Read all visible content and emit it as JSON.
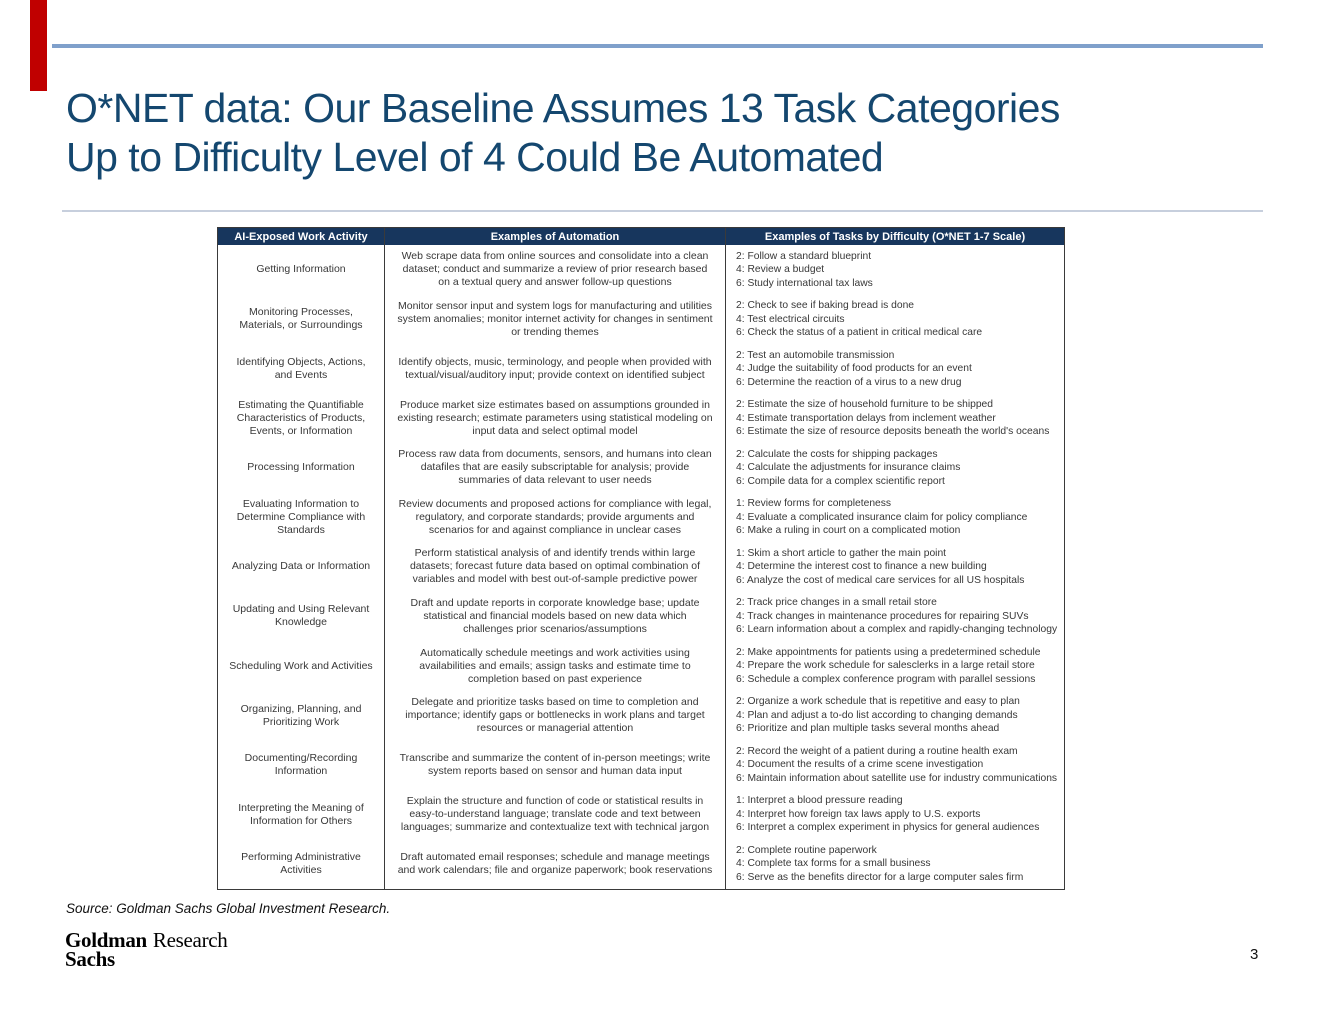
{
  "slide": {
    "title_line1": "O*NET data: Our Baseline Assumes 13 Task Categories",
    "title_line2": "Up to Difficulty Level of 4 Could Be Automated",
    "source": "Source: Goldman Sachs Global Investment Research.",
    "logo": {
      "line1": "Goldman",
      "line2": "Sachs",
      "division": "Research"
    },
    "page_number": "3"
  },
  "colors": {
    "title_blue": "#14476f",
    "header_navy": "#17365d",
    "top_rule_blue": "#7fa0cb",
    "divider_gray": "#c7cfdd",
    "red_accent": "#c00000"
  },
  "table": {
    "headers": [
      "AI-Exposed Work Activity",
      "Examples of Automation",
      "Examples of Tasks by Difficulty (O*NET 1-7 Scale)"
    ],
    "rows": [
      {
        "activity": "Getting Information",
        "automation": "Web scrape data from online sources and consolidate into a clean dataset; conduct and summarize a review of prior research based on a textual query and answer follow-up questions",
        "tasks": [
          "2: Follow a standard blueprint",
          "4: Review a budget",
          "6: Study international tax laws"
        ]
      },
      {
        "activity": "Monitoring Processes, Materials, or Surroundings",
        "automation": "Monitor sensor input and system logs for manufacturing and utilities system anomalies; monitor internet activity for changes in sentiment or trending themes",
        "tasks": [
          "2: Check to see if baking bread is done",
          "4: Test electrical circuits",
          "6: Check the status of a patient in critical medical care"
        ]
      },
      {
        "activity": "Identifying Objects, Actions, and Events",
        "automation": "Identify objects, music, terminology, and people when provided with textual/visual/auditory input; provide context on identified subject",
        "tasks": [
          "2: Test an automobile transmission",
          "4: Judge the suitability of food products for an event",
          "6: Determine the reaction of a virus to a new drug"
        ]
      },
      {
        "activity": "Estimating the Quantifiable Characteristics of Products, Events, or Information",
        "automation": "Produce market size estimates based on assumptions grounded in existing research; estimate parameters using statistical modeling on input data and select optimal model",
        "tasks": [
          "2: Estimate the size of household furniture to be shipped",
          "4: Estimate transportation delays from inclement weather",
          "6: Estimate the size of resource deposits beneath the world's oceans"
        ]
      },
      {
        "activity": "Processing Information",
        "automation": "Process raw data from documents, sensors, and humans into clean datafiles that are easily subscriptable for analysis; provide summaries of data relevant to user needs",
        "tasks": [
          "2: Calculate the costs for shipping packages",
          "4: Calculate the adjustments for insurance claims",
          "6: Compile data for a complex scientific report"
        ]
      },
      {
        "activity": "Evaluating Information to Determine Compliance with Standards",
        "automation": "Review documents and proposed actions for compliance with legal, regulatory, and corporate standards; provide arguments and scenarios for and against compliance in unclear cases",
        "tasks": [
          "1: Review forms for completeness",
          "4: Evaluate a complicated insurance claim for policy compliance",
          "6: Make a ruling in court on a complicated motion"
        ]
      },
      {
        "activity": "Analyzing Data or Information",
        "automation": "Perform statistical analysis of and identify trends within large datasets; forecast future data based on optimal combination of variables and model with best out-of-sample predictive power",
        "tasks": [
          "1: Skim a short article to gather the main point",
          "4: Determine the interest cost to finance a new building",
          "6: Analyze the cost of medical care services for all US hospitals"
        ]
      },
      {
        "activity": "Updating and Using Relevant Knowledge",
        "automation": "Draft and update reports in corporate knowledge base; update statistical and financial models based on new data which challenges prior scenarios/assumptions",
        "tasks": [
          "2: Track price changes in a small retail store",
          "4: Track changes in maintenance procedures for repairing SUVs",
          "6: Learn information about a complex and rapidly-changing technology"
        ]
      },
      {
        "activity": "Scheduling Work and Activities",
        "automation": "Automatically schedule meetings and work activities using availabilities and emails; assign tasks and estimate time to completion based on past experience",
        "tasks": [
          "2: Make appointments for patients using a predetermined schedule",
          "4: Prepare the work schedule for salesclerks in a large retail store",
          "6: Schedule a complex conference program with parallel sessions"
        ]
      },
      {
        "activity": "Organizing, Planning, and Prioritizing Work",
        "automation": "Delegate and prioritize tasks based on time to completion and importance; identify gaps or bottlenecks in work plans and target resources or managerial attention",
        "tasks": [
          "2: Organize a work schedule that is repetitive and easy to plan",
          "4: Plan and adjust a to-do list according to changing demands",
          "6: Prioritize and plan multiple tasks several months ahead"
        ]
      },
      {
        "activity": "Documenting/Recording Information",
        "automation": "Transcribe and summarize the content of in-person meetings; write system reports based on sensor and human data input",
        "tasks": [
          "2: Record the weight of a patient during a routine health exam",
          "4: Document the results of a crime scene investigation",
          "6: Maintain information about satellite use for industry communications"
        ]
      },
      {
        "activity": "Interpreting the Meaning of Information for Others",
        "automation": "Explain the structure and function of code or statistical results in easy-to-understand language; translate code and text between languages; summarize and contextualize text with technical jargon",
        "tasks": [
          "1: Interpret a blood pressure reading",
          "4: Interpret how foreign tax laws apply to U.S. exports",
          "6: Interpret a complex experiment in physics for general audiences"
        ]
      },
      {
        "activity": "Performing Administrative Activities",
        "automation": "Draft automated email responses; schedule and manage meetings and work calendars; file and organize paperwork; book reservations",
        "tasks": [
          "2: Complete routine paperwork",
          "4: Complete tax forms for a small business",
          "6: Serve as the benefits director for a large computer sales firm"
        ]
      }
    ]
  }
}
